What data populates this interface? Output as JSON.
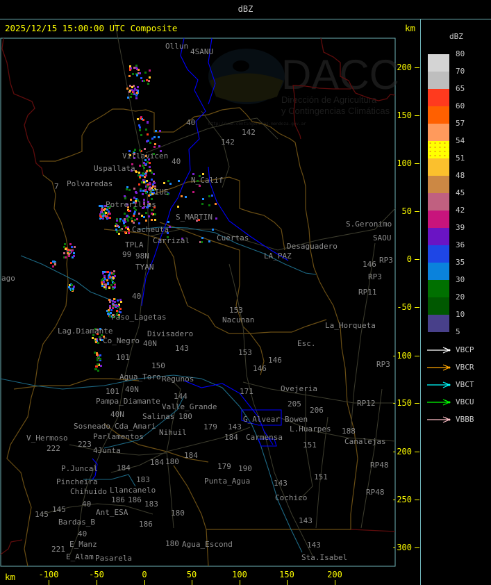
{
  "header": {
    "title": "dBZ"
  },
  "map": {
    "timestamp_label": "2025/12/15 15:00:00 UTC Composite",
    "y_axis_unit": "km",
    "x_axis_unit": "km",
    "y_ticks": [
      "200",
      "150",
      "100",
      "50",
      "0",
      "-50",
      "-100",
      "-150",
      "-200",
      "-250",
      "-300"
    ],
    "x_ticks": [
      "-100",
      "-50",
      "0",
      "50",
      "100",
      "150",
      "200"
    ],
    "place_labels": [
      "Ollun",
      "4SANU",
      "40",
      "142",
      "142",
      "Villavicen",
      "Uspallata",
      "40",
      "N_Calif",
      "Polvaredas",
      "7",
      "Potrerillos",
      "CIUE",
      "S_MARTIN",
      "Cacheuta",
      "Carrizal",
      "Cuertas",
      "TPLA",
      "98N",
      "99",
      "TYAN",
      "40",
      "LA_PAZ",
      "Desaguadero",
      "S.Geronimo",
      "SAOU",
      "146",
      "RP3",
      "RP3",
      "RP11",
      "153",
      "Nacunan",
      "La_Horqueta",
      "Divisadero",
      "Lag.Diamante",
      "Co_Negro",
      "Paso_Lagetas",
      "40N",
      "101",
      "143",
      "150",
      "153",
      "Esc.",
      "146",
      "146",
      "Agua_Toro",
      "Regunos",
      "40N",
      "Ovejeria",
      "205",
      "206",
      "171",
      "144",
      "Valle_Grande",
      "Pampa_Diamante",
      "101",
      "40N",
      "Salinas",
      "180",
      "Cda_Amari",
      "Parlamentos",
      "Sosneado",
      "Nihuil",
      "179",
      "184",
      "G_Alvear",
      "Bowen",
      "L.Huarpes",
      "Carmensa",
      "143",
      "151",
      "V_Hermoso",
      "222",
      "223",
      "4Junta",
      "180",
      "184",
      "184",
      "Canalejas",
      "188",
      "RP48",
      "RP48",
      "RP12",
      "RP3",
      "P.Juncal",
      "Pincheira",
      "184",
      "183",
      "Llancanelo",
      "179",
      "190",
      "Punta_Agua",
      "151",
      "143",
      "Cochico",
      "Chihuido",
      "186",
      "186",
      "183",
      "40",
      "Ant_ESA",
      "145",
      "145",
      "Bardas_B",
      "180",
      "186",
      "40",
      "E_Manz",
      "180",
      "Agua_Escond",
      "221",
      "143",
      "143",
      "Sta.Isabel",
      "E_Alam",
      "Pasarela",
      "ago"
    ],
    "watermark": {
      "brand": "DACC",
      "line1": "Dirección de Agricultura",
      "line2": "y Contingencias Climáticas",
      "url": "http://www.contingencias.mendoza.gov.ar"
    }
  },
  "legend": {
    "title": "dBZ",
    "colors": [
      "#d4d4d4",
      "#bebebe",
      "#ff3a1e",
      "#ff6000",
      "#ff9a5c",
      "#ffff00",
      "#fbc02d",
      "#cc8844",
      "#c06080",
      "#c8147c",
      "#6a14c4",
      "#1e46e6",
      "#0a82dc",
      "#007000",
      "#005800",
      "#48408a"
    ],
    "labels": [
      "80",
      "70",
      "65",
      "60",
      "57",
      "54",
      "51",
      "48",
      "45",
      "42",
      "39",
      "36",
      "35",
      "30",
      "20",
      "10",
      "5"
    ],
    "radars": [
      {
        "name": "VBCP",
        "color": "#ffffff"
      },
      {
        "name": "VBCR",
        "color": "#ffa500"
      },
      {
        "name": "VBCT",
        "color": "#00ffff"
      },
      {
        "name": "VBCU",
        "color": "#00ff00"
      },
      {
        "name": "VBBB",
        "color": "#ffc0c8"
      }
    ]
  }
}
